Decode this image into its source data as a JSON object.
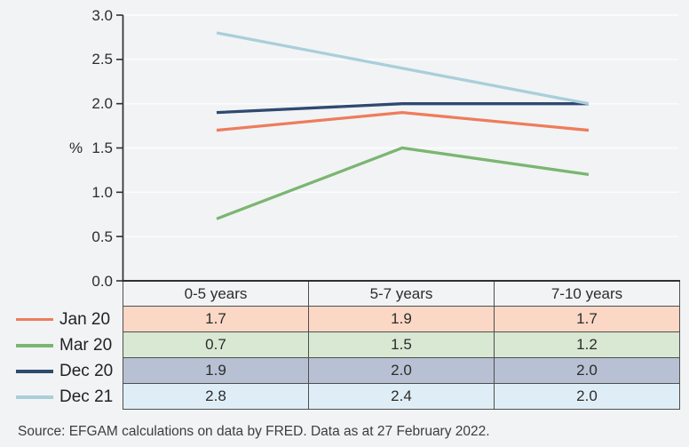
{
  "chart_data": {
    "type": "line",
    "title": "",
    "xlabel": "",
    "ylabel": "%",
    "categories": [
      "0-5 years",
      "5-7 years",
      "7-10 years"
    ],
    "series": [
      {
        "name": "Jan 20",
        "values": [
          1.7,
          1.9,
          1.7
        ],
        "color": "#ee7c5b",
        "row_bg": "#fbd8c6"
      },
      {
        "name": "Mar 20",
        "values": [
          0.7,
          1.5,
          1.2
        ],
        "color": "#7ab671",
        "row_bg": "#d8e8d2"
      },
      {
        "name": "Dec 20",
        "values": [
          1.9,
          2.0,
          2.0
        ],
        "color": "#2e4a70",
        "row_bg": "#b7c1d3"
      },
      {
        "name": "Dec 21",
        "values": [
          2.8,
          2.4,
          2.0
        ],
        "color": "#a9cfda",
        "row_bg": "#dfeef6"
      }
    ],
    "ylim": [
      0.0,
      3.0
    ],
    "yticks": [
      "3.0",
      "2.5",
      "2.0",
      "1.5",
      "1.0",
      "0.5",
      "0.0"
    ],
    "grid": "horizontal",
    "legend_position": "left-of-table",
    "value_decimals": 1
  },
  "source_note": "Source: EFGAM calculations on data by FRED. Data as at 27 February 2022.",
  "colors": {
    "background": "#f2f3f5",
    "gridline": "#fcfcfd",
    "axis": "#303030",
    "table_border": "#4f4f4f",
    "text": "#2c2c2c"
  }
}
